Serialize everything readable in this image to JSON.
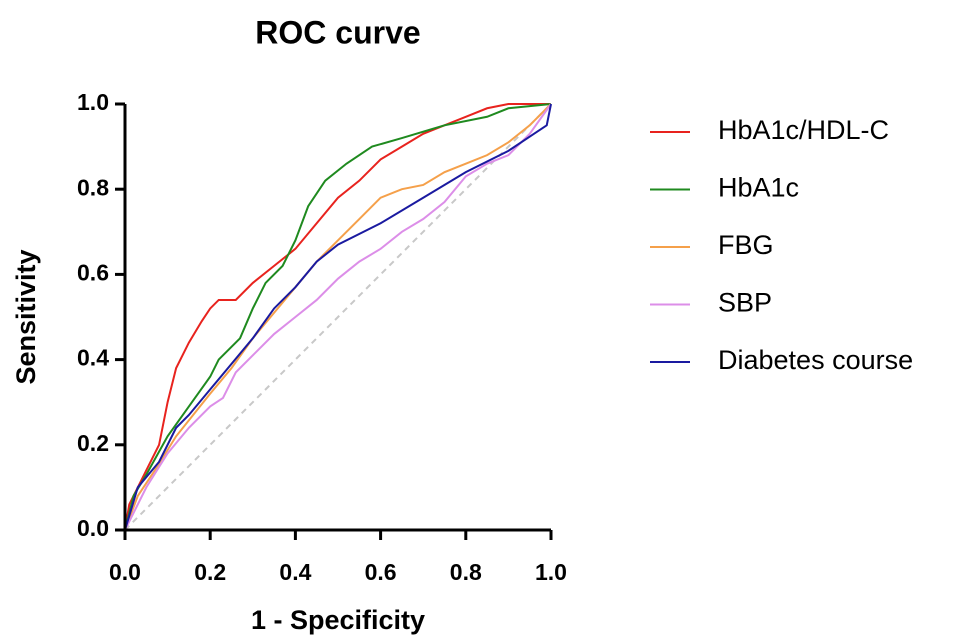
{
  "chart_data": {
    "type": "line",
    "title": "ROC curve",
    "x_label": "1 - Specificity",
    "y_label": "Sensitivity",
    "xlim": [
      0,
      1
    ],
    "ylim": [
      0,
      1
    ],
    "xticks": [
      {
        "value": 0,
        "label": "0.0"
      },
      0.2,
      0.4,
      0.6,
      0.8,
      {
        "value": 1,
        "label": "1.0"
      }
    ],
    "yticks": [
      {
        "value": 0,
        "label": "0.0"
      },
      0.2,
      0.4,
      0.6,
      0.8,
      {
        "value": 1,
        "label": "1.0"
      }
    ],
    "legend": "right",
    "series": [
      {
        "name": "HbA1c/HDL-C",
        "color": "#e8231e",
        "x": [
          0,
          0.01,
          0.03,
          0.05,
          0.08,
          0.1,
          0.12,
          0.15,
          0.18,
          0.2,
          0.22,
          0.26,
          0.3,
          0.35,
          0.4,
          0.45,
          0.5,
          0.55,
          0.6,
          0.65,
          0.7,
          0.8,
          0.85,
          0.9,
          1
        ],
        "values": [
          0,
          0.06,
          0.1,
          0.14,
          0.2,
          0.3,
          0.38,
          0.44,
          0.49,
          0.52,
          0.54,
          0.54,
          0.58,
          0.62,
          0.66,
          0.72,
          0.78,
          0.82,
          0.87,
          0.9,
          0.93,
          0.97,
          0.99,
          1,
          1
        ]
      },
      {
        "name": "HbA1c",
        "color": "#1f8a1f",
        "x": [
          0,
          0.02,
          0.05,
          0.1,
          0.15,
          0.2,
          0.22,
          0.27,
          0.3,
          0.33,
          0.37,
          0.4,
          0.43,
          0.47,
          0.52,
          0.58,
          0.65,
          0.75,
          0.85,
          0.9,
          1
        ],
        "values": [
          0,
          0.08,
          0.13,
          0.22,
          0.29,
          0.36,
          0.4,
          0.45,
          0.52,
          0.58,
          0.62,
          0.68,
          0.76,
          0.82,
          0.86,
          0.9,
          0.92,
          0.95,
          0.97,
          0.99,
          1
        ]
      },
      {
        "name": "FBG",
        "color": "#f5a04a",
        "x": [
          0,
          0.03,
          0.07,
          0.12,
          0.2,
          0.25,
          0.3,
          0.35,
          0.4,
          0.45,
          0.5,
          0.55,
          0.6,
          0.65,
          0.7,
          0.75,
          0.8,
          0.85,
          0.9,
          0.95,
          1
        ],
        "values": [
          0,
          0.08,
          0.14,
          0.22,
          0.32,
          0.38,
          0.45,
          0.51,
          0.57,
          0.63,
          0.68,
          0.73,
          0.78,
          0.8,
          0.81,
          0.84,
          0.86,
          0.88,
          0.91,
          0.95,
          1
        ]
      },
      {
        "name": "SBP",
        "color": "#dc8ee8",
        "x": [
          0,
          0.05,
          0.1,
          0.15,
          0.2,
          0.23,
          0.26,
          0.3,
          0.35,
          0.4,
          0.45,
          0.5,
          0.55,
          0.6,
          0.65,
          0.7,
          0.75,
          0.8,
          0.85,
          0.9,
          0.95,
          1
        ],
        "values": [
          0,
          0.1,
          0.18,
          0.24,
          0.29,
          0.31,
          0.37,
          0.41,
          0.46,
          0.5,
          0.54,
          0.59,
          0.63,
          0.66,
          0.7,
          0.73,
          0.77,
          0.83,
          0.86,
          0.88,
          0.93,
          1
        ]
      },
      {
        "name": "Diabetes course",
        "color": "#1a1aa0",
        "x": [
          0,
          0.03,
          0.08,
          0.12,
          0.15,
          0.2,
          0.25,
          0.3,
          0.35,
          0.4,
          0.45,
          0.5,
          0.6,
          0.7,
          0.8,
          0.9,
          0.96,
          0.99,
          1
        ],
        "values": [
          0,
          0.1,
          0.16,
          0.24,
          0.27,
          0.33,
          0.39,
          0.45,
          0.52,
          0.57,
          0.63,
          0.67,
          0.72,
          0.78,
          0.84,
          0.89,
          0.93,
          0.95,
          1
        ]
      }
    ]
  }
}
